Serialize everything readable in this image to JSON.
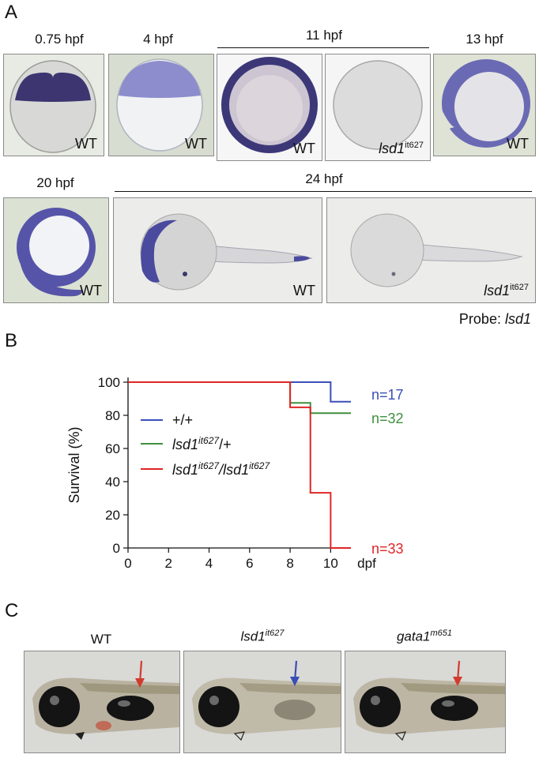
{
  "panel_a": {
    "label": "A",
    "stages": {
      "s0": "0.75 hpf",
      "s1": "4 hpf",
      "s2": "11 hpf",
      "s3": "13 hpf",
      "s4": "20 hpf",
      "s5": "24 hpf"
    },
    "images": [
      {
        "tag": "WT"
      },
      {
        "tag": "WT"
      },
      {
        "tag": "WT"
      },
      {
        "tag_main": "lsd1",
        "tag_sup": "it627"
      },
      {
        "tag": "WT"
      },
      {
        "tag": "WT"
      },
      {
        "tag": "WT"
      },
      {
        "tag_main": "lsd1",
        "tag_sup": "it627"
      }
    ],
    "probe_prefix": "Probe: ",
    "probe_name": "lsd1"
  },
  "panel_b": {
    "label": "B",
    "chart_data": {
      "type": "line",
      "ylabel": "Survival (%)",
      "xlabel": "dpf",
      "xlim": [
        0,
        11
      ],
      "ylim": [
        0,
        100
      ],
      "xticks": [
        0,
        2,
        4,
        6,
        8,
        10
      ],
      "yticks": [
        0,
        20,
        40,
        60,
        80,
        100
      ],
      "series": [
        {
          "name": "+/+",
          "color": "#3b4fb8",
          "points": [
            [
              0,
              100
            ],
            [
              10,
              100
            ],
            [
              10,
              88.2
            ],
            [
              11,
              88.2
            ]
          ],
          "end_label": "n=17"
        },
        {
          "name": "lsd1it627/+",
          "color": "#3f8f3f",
          "points": [
            [
              0,
              100
            ],
            [
              8,
              100
            ],
            [
              8,
              87.5
            ],
            [
              9,
              87.5
            ],
            [
              9,
              81.3
            ],
            [
              11,
              81.3
            ]
          ],
          "end_label": "n=32"
        },
        {
          "name": "lsd1it627/lsd1it627",
          "color": "#e02525",
          "points": [
            [
              0,
              100
            ],
            [
              8,
              100
            ],
            [
              8,
              84.8
            ],
            [
              9,
              84.8
            ],
            [
              9,
              33.3
            ],
            [
              10,
              33.3
            ],
            [
              10,
              0
            ],
            [
              11,
              0
            ]
          ],
          "end_label": "n=33"
        }
      ],
      "legend": {
        "placement": "center-left",
        "l1": "+/+",
        "l2_main": "lsd1",
        "l2_sup": "it627",
        "l2_suffix": "/+",
        "l3_a": "lsd1",
        "l3_sup1": "it627",
        "l3_mid": "/lsd1",
        "l3_sup2": "it627"
      }
    }
  },
  "panel_c": {
    "label": "C",
    "titles": [
      {
        "text": "WT"
      },
      {
        "main": "lsd1",
        "sup": "it627"
      },
      {
        "main": "gata1",
        "sup": "m651"
      }
    ],
    "arrow_colors": [
      "#d23a2e",
      "#3a4fb6",
      "#d23a2e"
    ]
  }
}
